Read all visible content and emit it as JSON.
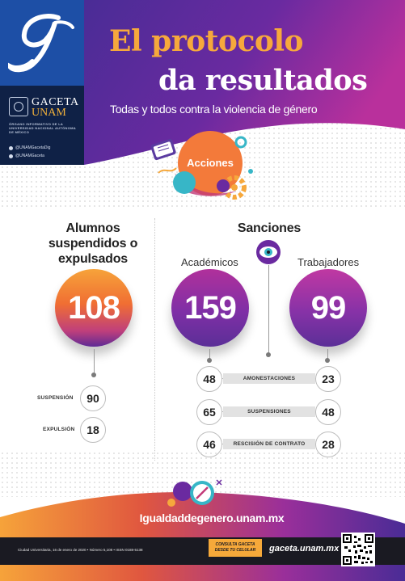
{
  "header": {
    "title_line1": "El protocolo",
    "title_line2": "da resultados",
    "subtitle": "Todas y todos contra la violencia de género"
  },
  "brand": {
    "logo_letter": "g",
    "name": "GACETA",
    "org": "UNAM",
    "tagline": "ÓRGANO INFORMATIVO DE LA UNIVERSIDAD NACIONAL AUTÓNOMA DE MÉXICO",
    "twitter": "@UNAMGacetaDig",
    "facebook": "@UNAMGaceta"
  },
  "acciones_label": "Acciones",
  "alumnos": {
    "title": "Alumnos suspendidos o expulsados",
    "total": "108",
    "rows": [
      {
        "label": "SUSPENSIÓN",
        "value": "90"
      },
      {
        "label": "EXPULSIÓN",
        "value": "18"
      }
    ]
  },
  "sanciones": {
    "title": "Sanciones",
    "academicos_label": "Académicos",
    "trabajadores_label": "Trabajadores",
    "academicos_total": "159",
    "trabajadores_total": "99",
    "rows": [
      {
        "label": "AMONESTACIONES",
        "academicos": "48",
        "trabajadores": "23"
      },
      {
        "label": "SUSPENSIONES",
        "academicos": "65",
        "trabajadores": "48"
      },
      {
        "label": "RESCISIÓN DE CONTRATO",
        "academicos": "46",
        "trabajadores": "28"
      }
    ]
  },
  "footer": {
    "url": "Igualdaddegenero.unam.mx",
    "meta": "Ciudad Universitaria, 16 de enero de 2020 • Número 5,108 • ISSN 0188-5138",
    "promo_line1": "CONSULTA GACETA",
    "promo_line2": "DESDE TU CELULAR",
    "site": "gaceta.unam.mx"
  },
  "colors": {
    "navy": "#0f2146",
    "royal_blue": "#1d4fa6",
    "orange": "#f6a83c",
    "purple": "#6a2aa0",
    "magenta": "#b9309c"
  }
}
